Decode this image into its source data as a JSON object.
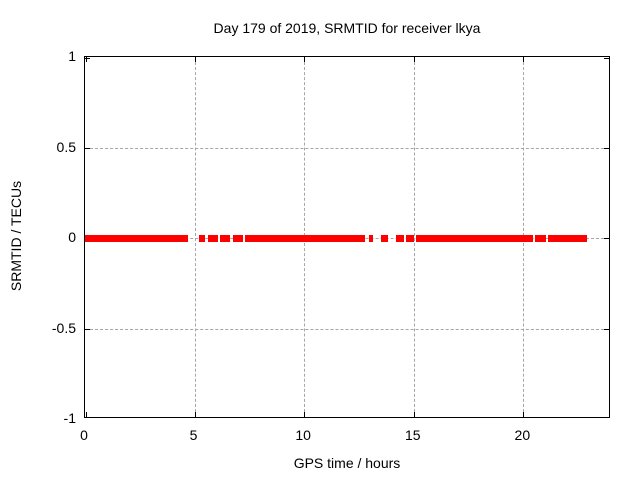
{
  "title": "Day 179 of 2019, SRMTID for receiver lkya",
  "chart_data": {
    "type": "scatter",
    "title": "Day 179 of 2019, SRMTID for receiver lkya",
    "xlabel": "GPS time / hours",
    "ylabel": "SRMTID / TECUs",
    "xlim": [
      0,
      24
    ],
    "ylim": [
      -1,
      1
    ],
    "grid": true,
    "legend": "none",
    "xticks": [
      {
        "value": 0,
        "label": "0"
      },
      {
        "value": 5,
        "label": "5"
      },
      {
        "value": 10,
        "label": "10"
      },
      {
        "value": 15,
        "label": "15"
      },
      {
        "value": 20,
        "label": "20"
      }
    ],
    "yticks": [
      {
        "value": -1,
        "label": "-1"
      },
      {
        "value": -0.5,
        "label": "-0.5"
      },
      {
        "value": 0,
        "label": "0"
      },
      {
        "value": 0.5,
        "label": "0.5"
      },
      {
        "value": 1,
        "label": "1"
      }
    ],
    "series": [
      {
        "name": "SRMTID",
        "marker": "thick-horizontal-band",
        "y_value": 0,
        "color": "#ff0000",
        "segments_x_hours": [
          [
            0.0,
            4.7
          ],
          [
            5.21,
            5.48
          ],
          [
            5.62,
            6.07
          ],
          [
            6.16,
            6.62
          ],
          [
            6.76,
            7.21
          ],
          [
            7.31,
            12.79
          ],
          [
            12.97,
            13.15
          ],
          [
            13.52,
            13.83
          ],
          [
            14.2,
            14.57
          ],
          [
            14.66,
            15.02
          ],
          [
            15.11,
            20.46
          ],
          [
            20.55,
            21.05
          ],
          [
            21.14,
            22.92
          ]
        ]
      }
    ],
    "colors": {
      "data": "#ff0000",
      "grid": "#a6a6a6",
      "border": "#000000",
      "background": "#ffffff",
      "text": "#000000"
    }
  }
}
